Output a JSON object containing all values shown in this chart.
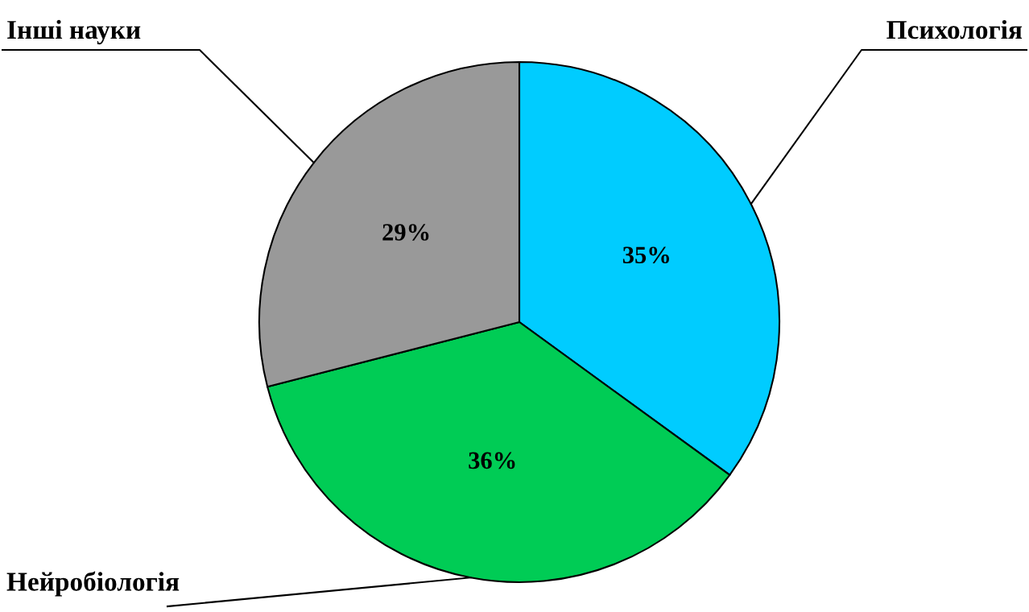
{
  "chart_data": {
    "type": "pie",
    "categories": [
      "Психологія",
      "Нейробіологія",
      "Інші науки"
    ],
    "values": [
      35,
      36,
      29
    ],
    "colors": [
      "#00ccff",
      "#00cc55",
      "#999999"
    ],
    "value_labels": [
      "35%",
      "36%",
      "29%"
    ]
  }
}
